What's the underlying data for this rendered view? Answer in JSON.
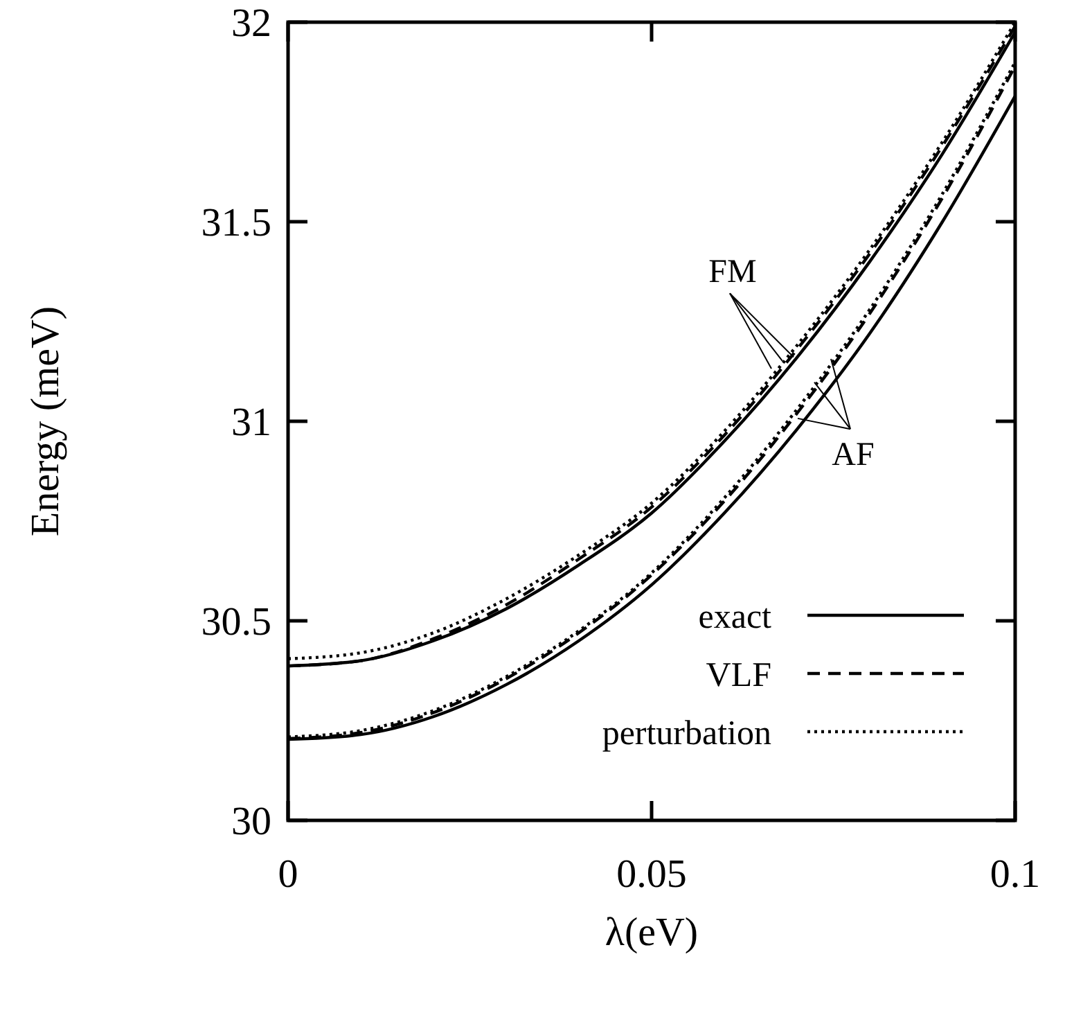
{
  "chart_data": {
    "type": "line",
    "xlabel": "λ(eV)",
    "ylabel": "Energy (meV)",
    "x": [
      0,
      0.01,
      0.02,
      0.03,
      0.04,
      0.05,
      0.06,
      0.07,
      0.08,
      0.09,
      0.1
    ],
    "series": [
      {
        "name": "exact",
        "color": "#000000",
        "line_style": "solid",
        "values": [
          30.387,
          30.4,
          30.45,
          30.53,
          30.64,
          30.77,
          30.95,
          31.16,
          31.4,
          31.67,
          31.975
        ]
      },
      {
        "name": "VLF",
        "color": "#000000",
        "line_style": "dashed",
        "values": [
          30.387,
          30.4,
          30.455,
          30.54,
          30.655,
          30.785,
          30.965,
          31.18,
          31.42,
          31.69,
          31.99
        ]
      },
      {
        "name": "perturbation",
        "color": "#000000",
        "line_style": "dotted",
        "values": [
          30.405,
          30.42,
          30.47,
          30.555,
          30.665,
          30.795,
          30.975,
          31.19,
          31.43,
          31.7,
          32.0
        ]
      },
      {
        "color": "#000000",
        "line_style": "solid",
        "values": [
          30.203,
          30.215,
          30.26,
          30.34,
          30.45,
          30.59,
          30.77,
          30.98,
          31.22,
          31.5,
          31.815
        ]
      },
      {
        "color": "#000000",
        "line_style": "dashed",
        "values": [
          30.205,
          30.22,
          30.27,
          30.355,
          30.47,
          30.615,
          30.8,
          31.02,
          31.27,
          31.56,
          31.89
        ]
      },
      {
        "color": "#000000",
        "line_style": "dotted",
        "values": [
          30.209,
          30.225,
          30.275,
          30.36,
          30.475,
          30.62,
          30.808,
          31.03,
          31.28,
          31.57,
          31.9
        ]
      }
    ],
    "annotations": [
      {
        "text": "FM",
        "x": 0.068,
        "y": 31.14
      },
      {
        "text": "AF",
        "x": 0.072,
        "y": 31.05
      }
    ],
    "xlim": [
      0,
      0.1
    ],
    "xticks": [
      0,
      0.05,
      0.1
    ],
    "ylim": [
      30,
      32
    ],
    "yticks": [
      30,
      30.5,
      31,
      31.5,
      32
    ],
    "grid": false,
    "legend": "bottom right"
  }
}
